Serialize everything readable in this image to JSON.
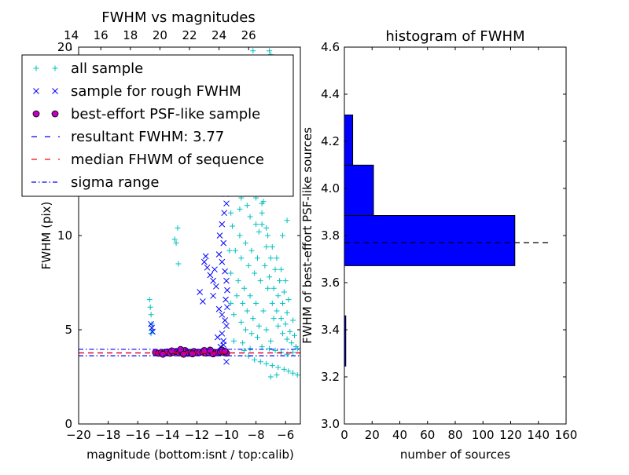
{
  "colors": {
    "all_sample": "#00bfbf",
    "rough_sample": "#0000ff",
    "psf_fill": "#bf00bf",
    "median_line": "#ff0000",
    "resultant_line": "#0000ff",
    "sigma_line": "#0000ff",
    "hist_bar": "#0000ff"
  },
  "chart_data": [
    {
      "type": "scatter",
      "title": "FWHM vs magnitudes",
      "xlabel": "magnitude (bottom:isnt / top:calib)",
      "ylabel": "FWHM (pix)",
      "xlim": [
        -20,
        -5
      ],
      "ylim": [
        0,
        20
      ],
      "x_ticks": [
        -20,
        -18,
        -16,
        -14,
        -12,
        -10,
        -8,
        -6
      ],
      "x_tick_labels": [
        "−20",
        "−18",
        "−16",
        "−14",
        "−12",
        "−10",
        "−8",
        "−6"
      ],
      "y_ticks": [
        0,
        5,
        10,
        20
      ],
      "y_tick_labels": [
        "0",
        "5",
        "10",
        "20"
      ],
      "top_axis": {
        "ticks": [
          14,
          16,
          18,
          20,
          22,
          24,
          26
        ],
        "tick_labels": [
          "14",
          "16",
          "18",
          "20",
          "22",
          "24",
          "26"
        ],
        "offset": 34.5
      },
      "legend_position": "upper-left",
      "legend": [
        {
          "label": "all sample",
          "marker": "plus",
          "color": "#00bfbf"
        },
        {
          "label": "sample for rough FWHM",
          "marker": "x",
          "color": "#0000ff"
        },
        {
          "label": "best-effort PSF-like sample",
          "marker": "circle",
          "color": "#bf00bf"
        },
        {
          "label": "resultant FWHM: 3.77",
          "marker": "dashed",
          "color": "#0000ff"
        },
        {
          "label": "median FHWM of sequence",
          "marker": "dashed",
          "color": "#ff0000"
        },
        {
          "label": "sigma range",
          "marker": "dashdot",
          "color": "#0000ff"
        }
      ],
      "hlines": [
        {
          "name": "resultant FWHM",
          "y": 3.77,
          "style": "dashed",
          "color": "#0000ff"
        },
        {
          "name": "median FWHM",
          "y": 3.77,
          "style": "dashed",
          "color": "#ff0000"
        },
        {
          "name": "sigma upper",
          "y": 3.96,
          "style": "dashdot",
          "color": "#0000ff"
        },
        {
          "name": "sigma lower",
          "y": 3.62,
          "style": "dashdot",
          "color": "#0000ff"
        }
      ],
      "series": [
        {
          "name": "all sample",
          "marker": "plus",
          "points": [
            [
              -15.2,
              6.6
            ],
            [
              -15.15,
              6.2
            ],
            [
              -15.1,
              5.8
            ],
            [
              -15.05,
              5.3
            ],
            [
              -15.0,
              5.0
            ],
            [
              -15.1,
              4.8
            ],
            [
              -13.3,
              10.4
            ],
            [
              -13.4,
              9.6
            ],
            [
              -13.25,
              8.5
            ],
            [
              -13.5,
              9.8
            ],
            [
              -8.2,
              19.8
            ],
            [
              -7.1,
              19.8
            ],
            [
              -7.0,
              19.6
            ],
            [
              -7.6,
              11.7
            ],
            [
              -6.2,
              10.0
            ],
            [
              -5.9,
              10.8
            ],
            [
              -9.8,
              15.2
            ],
            [
              -9.2,
              14.5
            ],
            [
              -8.8,
              14.0
            ],
            [
              -8.2,
              13.2
            ],
            [
              -7.9,
              12.4
            ],
            [
              -7.5,
              11.8
            ],
            [
              -9.5,
              12.8
            ],
            [
              -9.0,
              12.0
            ],
            [
              -8.6,
              11.6
            ],
            [
              -8.4,
              11.0
            ],
            [
              -8.0,
              10.6
            ],
            [
              -7.8,
              10.2
            ],
            [
              -9.6,
              10.5
            ],
            [
              -9.1,
              10.0
            ],
            [
              -8.7,
              9.6
            ],
            [
              -8.3,
              9.2
            ],
            [
              -7.9,
              8.8
            ],
            [
              -7.4,
              8.4
            ],
            [
              -9.4,
              9.2
            ],
            [
              -9.0,
              8.8
            ],
            [
              -8.5,
              8.4
            ],
            [
              -8.1,
              8.0
            ],
            [
              -7.7,
              7.6
            ],
            [
              -7.2,
              7.2
            ],
            [
              -9.7,
              8.0
            ],
            [
              -9.2,
              7.6
            ],
            [
              -8.8,
              7.2
            ],
            [
              -8.4,
              6.8
            ],
            [
              -8.0,
              6.4
            ],
            [
              -7.5,
              6.0
            ],
            [
              -9.3,
              6.8
            ],
            [
              -8.9,
              6.4
            ],
            [
              -8.6,
              6.0
            ],
            [
              -8.2,
              5.6
            ],
            [
              -7.8,
              5.2
            ],
            [
              -7.3,
              5.0
            ],
            [
              -9.5,
              5.8
            ],
            [
              -9.0,
              5.4
            ],
            [
              -8.7,
              5.0
            ],
            [
              -8.3,
              4.8
            ],
            [
              -7.9,
              4.6
            ],
            [
              -7.0,
              4.4
            ],
            [
              -6.8,
              5.6
            ],
            [
              -6.5,
              5.2
            ],
            [
              -6.2,
              4.8
            ],
            [
              -5.9,
              4.5
            ],
            [
              -5.6,
              4.3
            ],
            [
              -5.3,
              4.1
            ],
            [
              -6.9,
              6.4
            ],
            [
              -6.6,
              6.0
            ],
            [
              -6.3,
              5.6
            ],
            [
              -6.0,
              5.3
            ],
            [
              -5.7,
              4.9
            ],
            [
              -5.4,
              4.7
            ],
            [
              -7.1,
              7.8
            ],
            [
              -6.8,
              7.2
            ],
            [
              -6.5,
              6.8
            ],
            [
              -6.2,
              6.4
            ],
            [
              -5.9,
              5.9
            ],
            [
              -5.5,
              5.5
            ],
            [
              -7.3,
              9.4
            ],
            [
              -7.0,
              8.8
            ],
            [
              -6.7,
              8.2
            ],
            [
              -6.4,
              7.6
            ],
            [
              -6.1,
              7.0
            ],
            [
              -5.8,
              6.6
            ],
            [
              -7.6,
              10.6
            ],
            [
              -7.2,
              10.0
            ],
            [
              -6.9,
              9.4
            ],
            [
              -6.6,
              8.8
            ],
            [
              -6.3,
              8.2
            ],
            [
              -6.0,
              7.6
            ],
            [
              -8.0,
              12.0
            ],
            [
              -7.6,
              11.2
            ],
            [
              -7.3,
              10.4
            ],
            [
              -9.1,
              11.4
            ],
            [
              -8.9,
              13.2
            ],
            [
              -9.3,
              13.8
            ],
            [
              -8.5,
              3.6
            ],
            [
              -8.1,
              3.4
            ],
            [
              -7.7,
              3.3
            ],
            [
              -7.3,
              3.2
            ],
            [
              -6.9,
              3.1
            ],
            [
              -6.5,
              3.0
            ],
            [
              -6.1,
              2.9
            ],
            [
              -5.8,
              2.8
            ],
            [
              -5.5,
              2.7
            ],
            [
              -5.2,
              2.6
            ],
            [
              -7.0,
              2.5
            ],
            [
              -6.6,
              2.6
            ],
            [
              -8.8,
              3.9
            ],
            [
              -8.4,
              4.0
            ],
            [
              -7.6,
              4.1
            ],
            [
              -7.1,
              4.0
            ],
            [
              -6.7,
              3.9
            ],
            [
              -6.3,
              3.8
            ],
            [
              -5.9,
              3.7
            ],
            [
              -5.5,
              3.8
            ],
            [
              -5.2,
              4.0
            ],
            [
              -8.9,
              4.3
            ],
            [
              -9.5,
              4.4
            ],
            [
              -9.7,
              6.4
            ],
            [
              -9.8,
              9.2
            ],
            [
              -9.7,
              11.2
            ],
            [
              -9.6,
              13.1
            ],
            [
              -9.9,
              14.4
            ],
            [
              -8.6,
              15.0
            ],
            [
              -8.3,
              14.6
            ]
          ]
        },
        {
          "name": "sample for rough FWHM",
          "marker": "x",
          "points": [
            [
              -15.1,
              5.3
            ],
            [
              -15.05,
              5.1
            ],
            [
              -15.0,
              4.9
            ],
            [
              -11.2,
              13.0
            ],
            [
              -11.0,
              12.9
            ],
            [
              -10.8,
              13.1
            ],
            [
              -10.6,
              13.0
            ],
            [
              -10.4,
              12.7
            ],
            [
              -10.2,
              13.4
            ],
            [
              -10.1,
              12.6
            ],
            [
              -10.05,
              12.2
            ],
            [
              -10.0,
              11.7
            ],
            [
              -10.15,
              11.2
            ],
            [
              -10.3,
              10.6
            ],
            [
              -10.45,
              10.0
            ],
            [
              -10.2,
              9.6
            ],
            [
              -11.5,
              8.6
            ],
            [
              -11.4,
              8.9
            ],
            [
              -11.3,
              8.3
            ],
            [
              -11.1,
              7.9
            ],
            [
              -10.9,
              7.6
            ],
            [
              -10.7,
              7.3
            ],
            [
              -10.9,
              6.8
            ],
            [
              -11.8,
              7.0
            ],
            [
              -11.6,
              6.5
            ],
            [
              -10.5,
              6.1
            ],
            [
              -10.3,
              5.8
            ],
            [
              -10.1,
              5.5
            ],
            [
              -10.0,
              5.2
            ],
            [
              -10.3,
              4.8
            ],
            [
              -10.6,
              4.6
            ],
            [
              -10.2,
              4.4
            ],
            [
              -10.8,
              8.2
            ],
            [
              -10.5,
              9.0
            ],
            [
              -10.3,
              8.6
            ],
            [
              -10.1,
              8.1
            ],
            [
              -10.0,
              7.6
            ],
            [
              -9.95,
              7.1
            ],
            [
              -10.05,
              6.6
            ],
            [
              -9.95,
              6.2
            ],
            [
              -10.0,
              3.3
            ],
            [
              -10.2,
              4.2
            ],
            [
              -10.4,
              4.1
            ]
          ]
        },
        {
          "name": "best-effort PSF-like sample",
          "marker": "circle",
          "points": [
            [
              -14.8,
              3.8
            ],
            [
              -14.6,
              3.75
            ],
            [
              -14.4,
              3.8
            ],
            [
              -14.2,
              3.78
            ],
            [
              -14.0,
              3.82
            ],
            [
              -13.8,
              3.75
            ],
            [
              -13.6,
              3.8
            ],
            [
              -13.4,
              3.85
            ],
            [
              -13.2,
              3.77
            ],
            [
              -13.0,
              3.8
            ],
            [
              -12.8,
              3.9
            ],
            [
              -12.6,
              3.75
            ],
            [
              -12.4,
              3.8
            ],
            [
              -12.2,
              3.85
            ],
            [
              -12.0,
              3.78
            ],
            [
              -11.8,
              3.8
            ],
            [
              -11.6,
              3.82
            ],
            [
              -11.4,
              3.76
            ],
            [
              -11.2,
              3.8
            ],
            [
              -11.0,
              3.84
            ],
            [
              -10.8,
              3.8
            ],
            [
              -10.6,
              3.78
            ],
            [
              -10.4,
              3.82
            ],
            [
              -10.2,
              3.8
            ],
            [
              -10.0,
              3.76
            ],
            [
              -13.1,
              3.95
            ],
            [
              -12.9,
              3.7
            ],
            [
              -11.5,
              3.9
            ],
            [
              -10.9,
              3.72
            ],
            [
              -10.3,
              3.92
            ],
            [
              -14.3,
              3.7
            ],
            [
              -13.7,
              3.88
            ],
            [
              -12.3,
              3.72
            ],
            [
              -11.1,
              3.92
            ],
            [
              -10.1,
              3.86
            ]
          ]
        }
      ]
    },
    {
      "type": "bar",
      "orientation": "horizontal",
      "title": "histogram of FWHM",
      "xlabel": "number of sources",
      "ylabel": "FWHM of best-effort PSF-like sources",
      "xlim": [
        0,
        160
      ],
      "ylim": [
        3.0,
        4.6
      ],
      "x_ticks": [
        0,
        20,
        40,
        60,
        80,
        100,
        120,
        140,
        160
      ],
      "x_tick_labels": [
        "0",
        "20",
        "40",
        "60",
        "80",
        "100",
        "120",
        "140",
        "160"
      ],
      "y_ticks": [
        3.0,
        3.2,
        3.4,
        3.6,
        3.8,
        4.0,
        4.2,
        4.4,
        4.6
      ],
      "y_tick_labels": [
        "3.0",
        "3.2",
        "3.4",
        "3.6",
        "3.8",
        "4.0",
        "4.2",
        "4.4",
        "4.6"
      ],
      "bins": [
        {
          "from": 3.246,
          "to": 3.459,
          "count": 1
        },
        {
          "from": 3.672,
          "to": 3.885,
          "count": 123
        },
        {
          "from": 3.885,
          "to": 4.099,
          "count": 21
        },
        {
          "from": 4.099,
          "to": 4.312,
          "count": 6
        }
      ],
      "hline": {
        "y": 3.77,
        "from": 0,
        "to": 148,
        "style": "dashed",
        "color": "#000000"
      }
    }
  ]
}
